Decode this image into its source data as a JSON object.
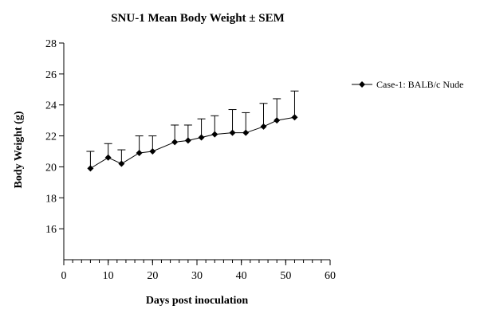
{
  "chart_data": {
    "type": "line",
    "title": "SNU-1 Mean Body Weight ± SEM",
    "xlabel": "Days post inoculation",
    "ylabel": "Body Weight (g)",
    "xlim": [
      0,
      60
    ],
    "ylim": [
      14,
      28
    ],
    "x_ticks": [
      "0",
      "10",
      "20",
      "30",
      "40",
      "50",
      "60"
    ],
    "y_ticks": [
      "16",
      "18",
      "20",
      "22",
      "24",
      "26",
      "28"
    ],
    "x_minor_step": 2,
    "grid": false,
    "legend_position": "right",
    "error_bars": "SEM, upper only",
    "series": [
      {
        "name": "Case-1: BALB/c Nude",
        "color": "#000000",
        "marker": "diamond",
        "x": [
          6,
          10,
          13,
          17,
          20,
          25,
          28,
          31,
          34,
          38,
          41,
          45,
          48,
          52
        ],
        "y": [
          19.9,
          20.6,
          20.2,
          20.9,
          21.0,
          21.6,
          21.7,
          21.9,
          22.1,
          22.2,
          22.2,
          22.6,
          23.0,
          23.2
        ],
        "sem": [
          1.1,
          0.9,
          0.9,
          1.1,
          1.0,
          1.1,
          1.0,
          1.2,
          1.2,
          1.5,
          1.3,
          1.5,
          1.4,
          1.7
        ]
      }
    ]
  }
}
